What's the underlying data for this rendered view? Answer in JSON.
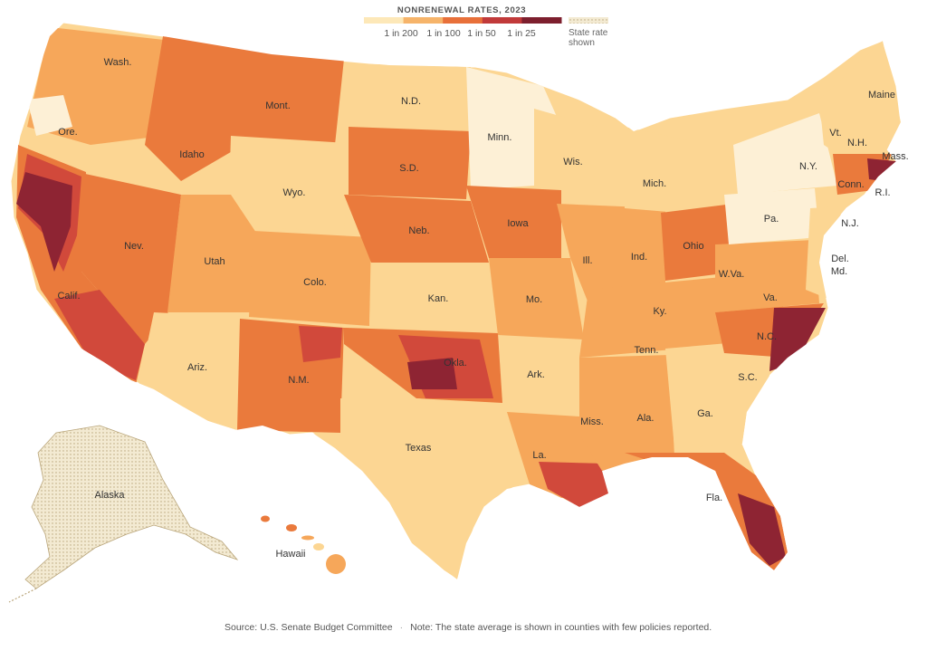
{
  "legend": {
    "title": "NONRENEWAL RATES, 2023",
    "bins": [
      {
        "label": "1 in 200",
        "color": "#fde8b8"
      },
      {
        "label": "1 in 100",
        "color": "#f6b46a"
      },
      {
        "label": "1 in 50",
        "color": "#e8703a"
      },
      {
        "label": "1 in 25",
        "color": "#c13a3a"
      }
    ],
    "top_color": "#7d1f2e",
    "state_rate_note": "State rate shown",
    "state_rate_note_line1": "State rate",
    "state_rate_note_line2": "shown"
  },
  "colors": {
    "very_low": "#fdf0d6",
    "low": "#fcd693",
    "medium": "#f6a75a",
    "high": "#ea7a3c",
    "very_high": "#d1493b",
    "extreme": "#8e2433",
    "state_rate_pattern": "#f3ead2",
    "border": "#ffffff"
  },
  "state_labels": {
    "wash": "Wash.",
    "ore": "Ore.",
    "calif": "Calif.",
    "nev": "Nev.",
    "idaho": "Idaho",
    "mont": "Mont.",
    "wyo": "Wyo.",
    "utah": "Utah",
    "ariz": "Ariz.",
    "colo": "Colo.",
    "nm": "N.M.",
    "nd": "N.D.",
    "sd": "S.D.",
    "neb": "Neb.",
    "kan": "Kan.",
    "okla": "Okla.",
    "texas": "Texas",
    "minn": "Minn.",
    "iowa": "Iowa",
    "mo": "Mo.",
    "ark": "Ark.",
    "la": "La.",
    "wis": "Wis.",
    "ill": "Ill.",
    "mich": "Mich.",
    "ind": "Ind.",
    "ohio": "Ohio",
    "ky": "Ky.",
    "tenn": "Tenn.",
    "miss": "Miss.",
    "ala": "Ala.",
    "ga": "Ga.",
    "fla": "Fla.",
    "sc": "S.C.",
    "nc": "N.C.",
    "va": "Va.",
    "wva": "W.Va.",
    "pa": "Pa.",
    "ny": "N.Y.",
    "vt": "Vt.",
    "nh": "N.H.",
    "maine": "Maine",
    "mass": "Mass.",
    "ri": "R.I.",
    "conn": "Conn.",
    "nj": "N.J.",
    "del": "Del.",
    "md": "Md.",
    "alaska": "Alaska",
    "hawaii": "Hawaii"
  },
  "footer": {
    "source": "Source: U.S. Senate Budget Committee",
    "note": "Note: The state average is shown in counties with few policies reported."
  }
}
